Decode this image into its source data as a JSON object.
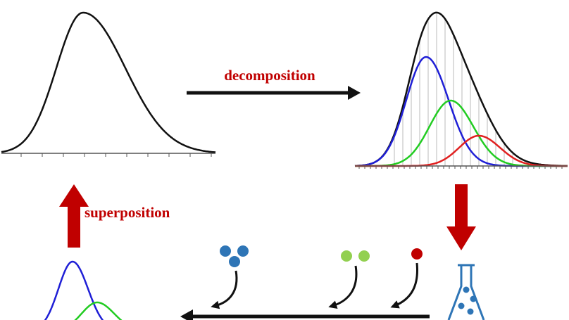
{
  "arrows": [
    {
      "label": "decomposition"
    },
    {
      "label": "superposition"
    }
  ]
}
